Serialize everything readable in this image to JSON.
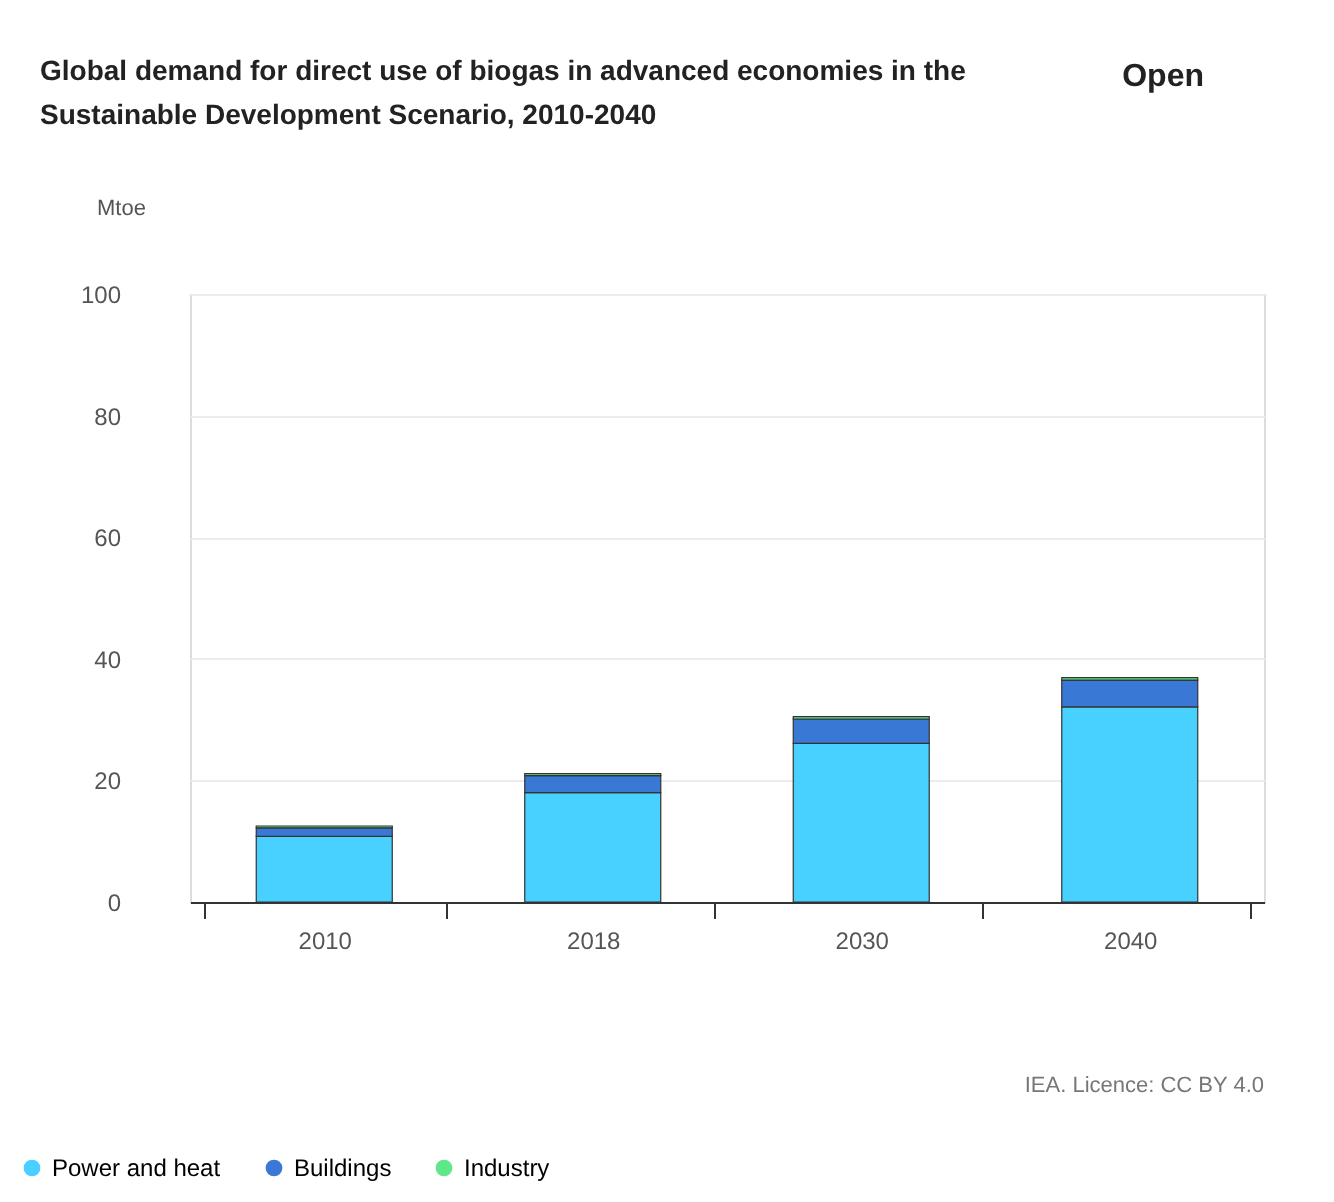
{
  "chart_data": {
    "type": "bar",
    "title": "Global demand for direct use of biogas in advanced economies in the Sustainable Development Scenario, 2010-2040",
    "ylabel": "Mtoe",
    "categories": [
      "2010",
      "2018",
      "2030",
      "2040"
    ],
    "stacked": true,
    "series": [
      {
        "name": "Power and heat",
        "color": "#48d1ff",
        "values": [
          10.8,
          18.0,
          26.1,
          32.1
        ]
      },
      {
        "name": "Buildings",
        "color": "#3a78d6",
        "values": [
          1.4,
          2.8,
          4.0,
          4.4
        ]
      },
      {
        "name": "Industry",
        "color": "#5ee88a",
        "values": [
          0.3,
          0.3,
          0.4,
          0.4
        ]
      }
    ],
    "ylim": [
      0,
      100
    ],
    "yticks": [
      0,
      20,
      40,
      60,
      80,
      100
    ],
    "grid": "y",
    "legend": "bottom left",
    "annotations": [
      "Open",
      "IEA. Licence: CC BY 4.0"
    ]
  }
}
